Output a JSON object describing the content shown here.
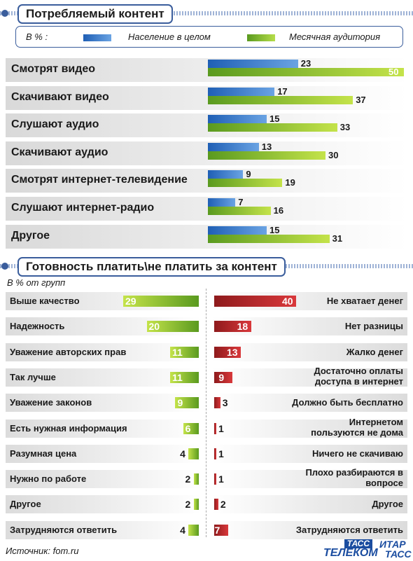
{
  "colors": {
    "blue": "#3d7cc9",
    "green": "#8cc63f",
    "red": "#c0282b",
    "frame": "#3a5d9c"
  },
  "section1": {
    "title": "Потребляемый контент"
  },
  "legend": {
    "unit": "В % :",
    "series1": "Население в целом",
    "series2": "Месячная аудитория"
  },
  "section2": {
    "title": "Готовность платить\\не платить за контент",
    "unit": "В % от групп"
  },
  "chart_data": [
    {
      "type": "bar",
      "orientation": "horizontal",
      "categories": [
        "Смотрят видео",
        "Скачивают видео",
        "Слушают аудио",
        "Скачивают аудио",
        "Смотрят интернет-телевидение",
        "Слушают интернет-радио",
        "Другое"
      ],
      "series": [
        {
          "name": "Население в целом",
          "values": [
            23,
            17,
            15,
            13,
            9,
            7,
            15
          ]
        },
        {
          "name": "Месячная аудитория",
          "values": [
            50,
            37,
            33,
            30,
            19,
            16,
            31
          ]
        }
      ],
      "xlim": [
        0,
        50
      ],
      "legend": "top"
    },
    {
      "type": "bar",
      "orientation": "horizontal",
      "categories": [
        "Выше качество",
        "Надежность",
        "Уважение авторских прав",
        "Так лучше",
        "Уважение законов",
        "Есть нужная информация",
        "Разумная цена",
        "Нужно по работе",
        "Другое",
        "Затрудняются ответить"
      ],
      "values": [
        29,
        20,
        11,
        11,
        9,
        6,
        4,
        2,
        2,
        4
      ],
      "xlim": [
        0,
        40
      ]
    },
    {
      "type": "bar",
      "orientation": "horizontal",
      "categories": [
        "Не хватает денег",
        "Нет разницы",
        "Жалко денег",
        "Достаточно оплаты доступа в интернет",
        "Должно быть бесплатно",
        "Интернетом пользуются не дома",
        "Ничего не скачиваю",
        "Плохо разбираются в вопросе",
        "Другое",
        "Затрудняются ответить"
      ],
      "values": [
        40,
        18,
        13,
        9,
        3,
        1,
        1,
        1,
        2,
        7
      ],
      "xlim": [
        0,
        40
      ]
    }
  ],
  "footer": {
    "source": "Источник: fom.ru",
    "logo1_top": "ТАСС",
    "logo1_bottom": "ТЕЛЕКОМ",
    "logo2_top": "ИТАР",
    "logo2_bottom": "ТАСС"
  }
}
